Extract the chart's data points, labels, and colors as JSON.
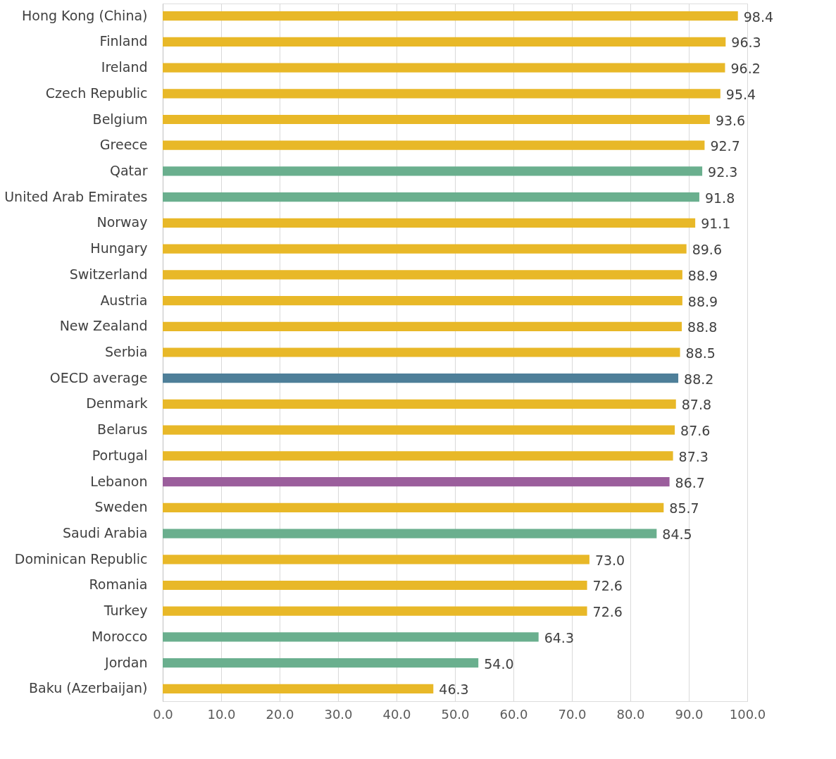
{
  "chart_data": {
    "type": "bar",
    "orientation": "horizontal",
    "categories": [
      "Hong Kong (China)",
      "Finland",
      "Ireland",
      "Czech Republic",
      "Belgium",
      "Greece",
      "Qatar",
      "United Arab Emirates",
      "Norway",
      "Hungary",
      "Switzerland",
      "Austria",
      "New Zealand",
      "Serbia",
      "OECD average",
      "Denmark",
      "Belarus",
      "Portugal",
      "Lebanon",
      "Sweden",
      "Saudi Arabia",
      "Dominican Republic",
      "Romania",
      "Turkey",
      "Morocco",
      "Jordan",
      "Baku (Azerbaijan)"
    ],
    "values": [
      98.4,
      96.3,
      96.2,
      95.4,
      93.6,
      92.7,
      92.3,
      91.8,
      91.1,
      89.6,
      88.9,
      88.9,
      88.8,
      88.5,
      88.2,
      87.8,
      87.6,
      87.3,
      86.7,
      85.7,
      84.5,
      73.0,
      72.6,
      72.6,
      64.3,
      54.0,
      46.3
    ],
    "value_labels": [
      "98.4",
      "96.3",
      "96.2",
      "95.4",
      "93.6",
      "92.7",
      "92.3",
      "91.8",
      "91.1",
      "89.6",
      "88.9",
      "88.9",
      "88.8",
      "88.5",
      "88.2",
      "87.8",
      "87.6",
      "87.3",
      "86.7",
      "85.7",
      "84.5",
      "73.0",
      "72.6",
      "72.6",
      "64.3",
      "54.0",
      "46.3"
    ],
    "colors": [
      "#e8b828",
      "#e8b828",
      "#e8b828",
      "#e8b828",
      "#e8b828",
      "#e8b828",
      "#6aaf8e",
      "#6aaf8e",
      "#e8b828",
      "#e8b828",
      "#e8b828",
      "#e8b828",
      "#e8b828",
      "#e8b828",
      "#4e7f99",
      "#e8b828",
      "#e8b828",
      "#e8b828",
      "#9b5e9c",
      "#e8b828",
      "#6aaf8e",
      "#e8b828",
      "#e8b828",
      "#e8b828",
      "#6aaf8e",
      "#6aaf8e",
      "#e8b828"
    ],
    "xlim": [
      0,
      100
    ],
    "xticks": [
      {
        "value": 0,
        "label": "0.0"
      },
      {
        "value": 10,
        "label": "10.0"
      },
      {
        "value": 20,
        "label": "20.0"
      },
      {
        "value": 30,
        "label": "30.0"
      },
      {
        "value": 40,
        "label": "40.0"
      },
      {
        "value": 50,
        "label": "50.0"
      },
      {
        "value": 60,
        "label": "60.0"
      },
      {
        "value": 70,
        "label": "70.0"
      },
      {
        "value": 80,
        "label": "80.0"
      },
      {
        "value": 90,
        "label": "90.0"
      },
      {
        "value": 100,
        "label": "100.0"
      }
    ],
    "grid": "x"
  }
}
